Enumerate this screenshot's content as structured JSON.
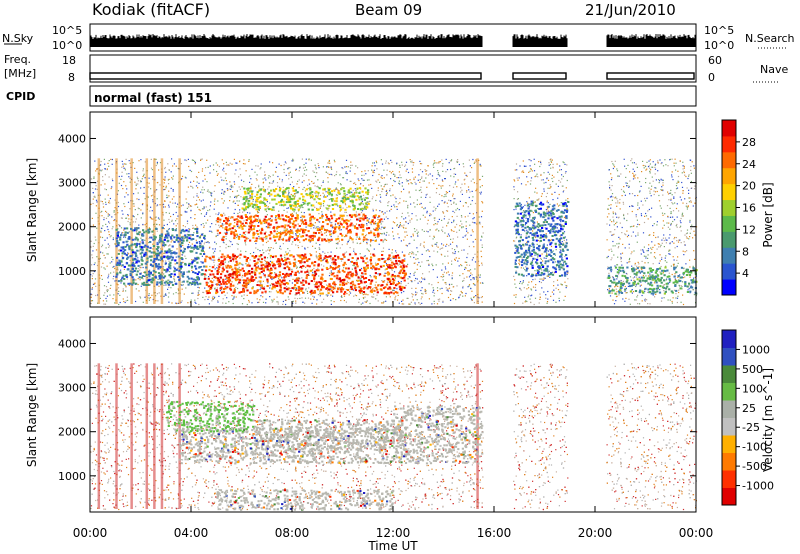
{
  "header": {
    "station": "Kodiak (fitACF)",
    "beam": "Beam 09",
    "date": "21/Jun/2010"
  },
  "status_panels": {
    "nsky_label": "N.Sky",
    "nsky_ticks": [
      "10^5",
      "10^0"
    ],
    "nsearch_label": "N.Search",
    "nsearch_ticks": [
      "10^5",
      "10^0"
    ],
    "freq_label_1": "Freq.",
    "freq_label_2": "[MHz]",
    "freq_ticks": [
      "18",
      "8"
    ],
    "nave_label": "Nave",
    "nave_ticks": [
      "60",
      "0"
    ],
    "cpid_label": "CPID",
    "cpid_value": "normal (fast) 151"
  },
  "chart_data": [
    {
      "type": "heatmap",
      "panel": "power",
      "ylabel": "Slant Range [km]",
      "xlabel": "",
      "yticks": [
        "1000",
        "2000",
        "3000",
        "4000"
      ],
      "ylim": [
        180,
        4600
      ],
      "xlim": [
        0,
        24
      ],
      "colorbar_label": "Power [dB]",
      "colorbar_ticks": [
        "4",
        "8",
        "12",
        "16",
        "20",
        "24",
        "28"
      ],
      "colorbar_range": [
        0,
        32
      ],
      "colorbar_colors": [
        "#0000ff",
        "#2a55d0",
        "#3f7fb0",
        "#4a9a6e",
        "#5cba4a",
        "#9fcf2e",
        "#ffd000",
        "#ffa500",
        "#ff6a00",
        "#ff2a00",
        "#e00000"
      ],
      "data_gaps_hours": [
        [
          15.55,
          16.75
        ],
        [
          18.9,
          20.45
        ]
      ],
      "regions": [
        {
          "t0": 4.5,
          "t1": 12.5,
          "r0": 500,
          "r1": 1400,
          "level": 28
        },
        {
          "t0": 5.0,
          "t1": 11.5,
          "r0": 1700,
          "r1": 2300,
          "level": 26
        },
        {
          "t0": 6.0,
          "t1": 11.0,
          "r0": 2400,
          "r1": 2900,
          "level": 16
        },
        {
          "t0": 1.0,
          "t1": 4.5,
          "r0": 700,
          "r1": 2000,
          "level": 6
        },
        {
          "t0": 16.8,
          "t1": 18.9,
          "r0": 900,
          "r1": 2600,
          "level": 6
        },
        {
          "t0": 20.5,
          "t1": 24.0,
          "r0": 500,
          "r1": 1100,
          "level": 10
        }
      ]
    },
    {
      "type": "heatmap",
      "panel": "velocity",
      "ylabel": "Slant Range [km]",
      "xlabel": "Time UT",
      "xticks": [
        "00:00",
        "04:00",
        "08:00",
        "12:00",
        "16:00",
        "20:00",
        "00:00"
      ],
      "yticks": [
        "1000",
        "2000",
        "3000",
        "4000"
      ],
      "ylim": [
        180,
        4600
      ],
      "xlim": [
        0,
        24
      ],
      "colorbar_label": "Velocity [m s^-1]",
      "colorbar_ticks": [
        "1000",
        "500",
        "100",
        "25",
        "-25",
        "-100",
        "-500",
        "-1000"
      ],
      "colorbar_colors": [
        "#2020c0",
        "#3050c0",
        "#4a8a3a",
        "#66bb44",
        "#aab0a8",
        "#c0c0c0",
        "#ffb000",
        "#ff7a00",
        "#ff3000",
        "#e00000"
      ],
      "data_gaps_hours": [
        [
          15.55,
          16.75
        ],
        [
          18.9,
          20.45
        ]
      ],
      "regions": [
        {
          "t0": 3.5,
          "t1": 15.5,
          "r0": 1300,
          "r1": 2100,
          "level": "ground"
        },
        {
          "t0": 3.0,
          "t1": 6.5,
          "r0": 2000,
          "r1": 2700,
          "level": "+100"
        },
        {
          "t0": 6.5,
          "t1": 12.5,
          "r0": 1600,
          "r1": 2300,
          "level": "ground"
        },
        {
          "t0": 12.0,
          "t1": 15.5,
          "r0": 2100,
          "r1": 2600,
          "level": "ground"
        },
        {
          "t0": 5.0,
          "t1": 12.0,
          "r0": 250,
          "r1": 700,
          "level": "ground"
        }
      ]
    }
  ]
}
